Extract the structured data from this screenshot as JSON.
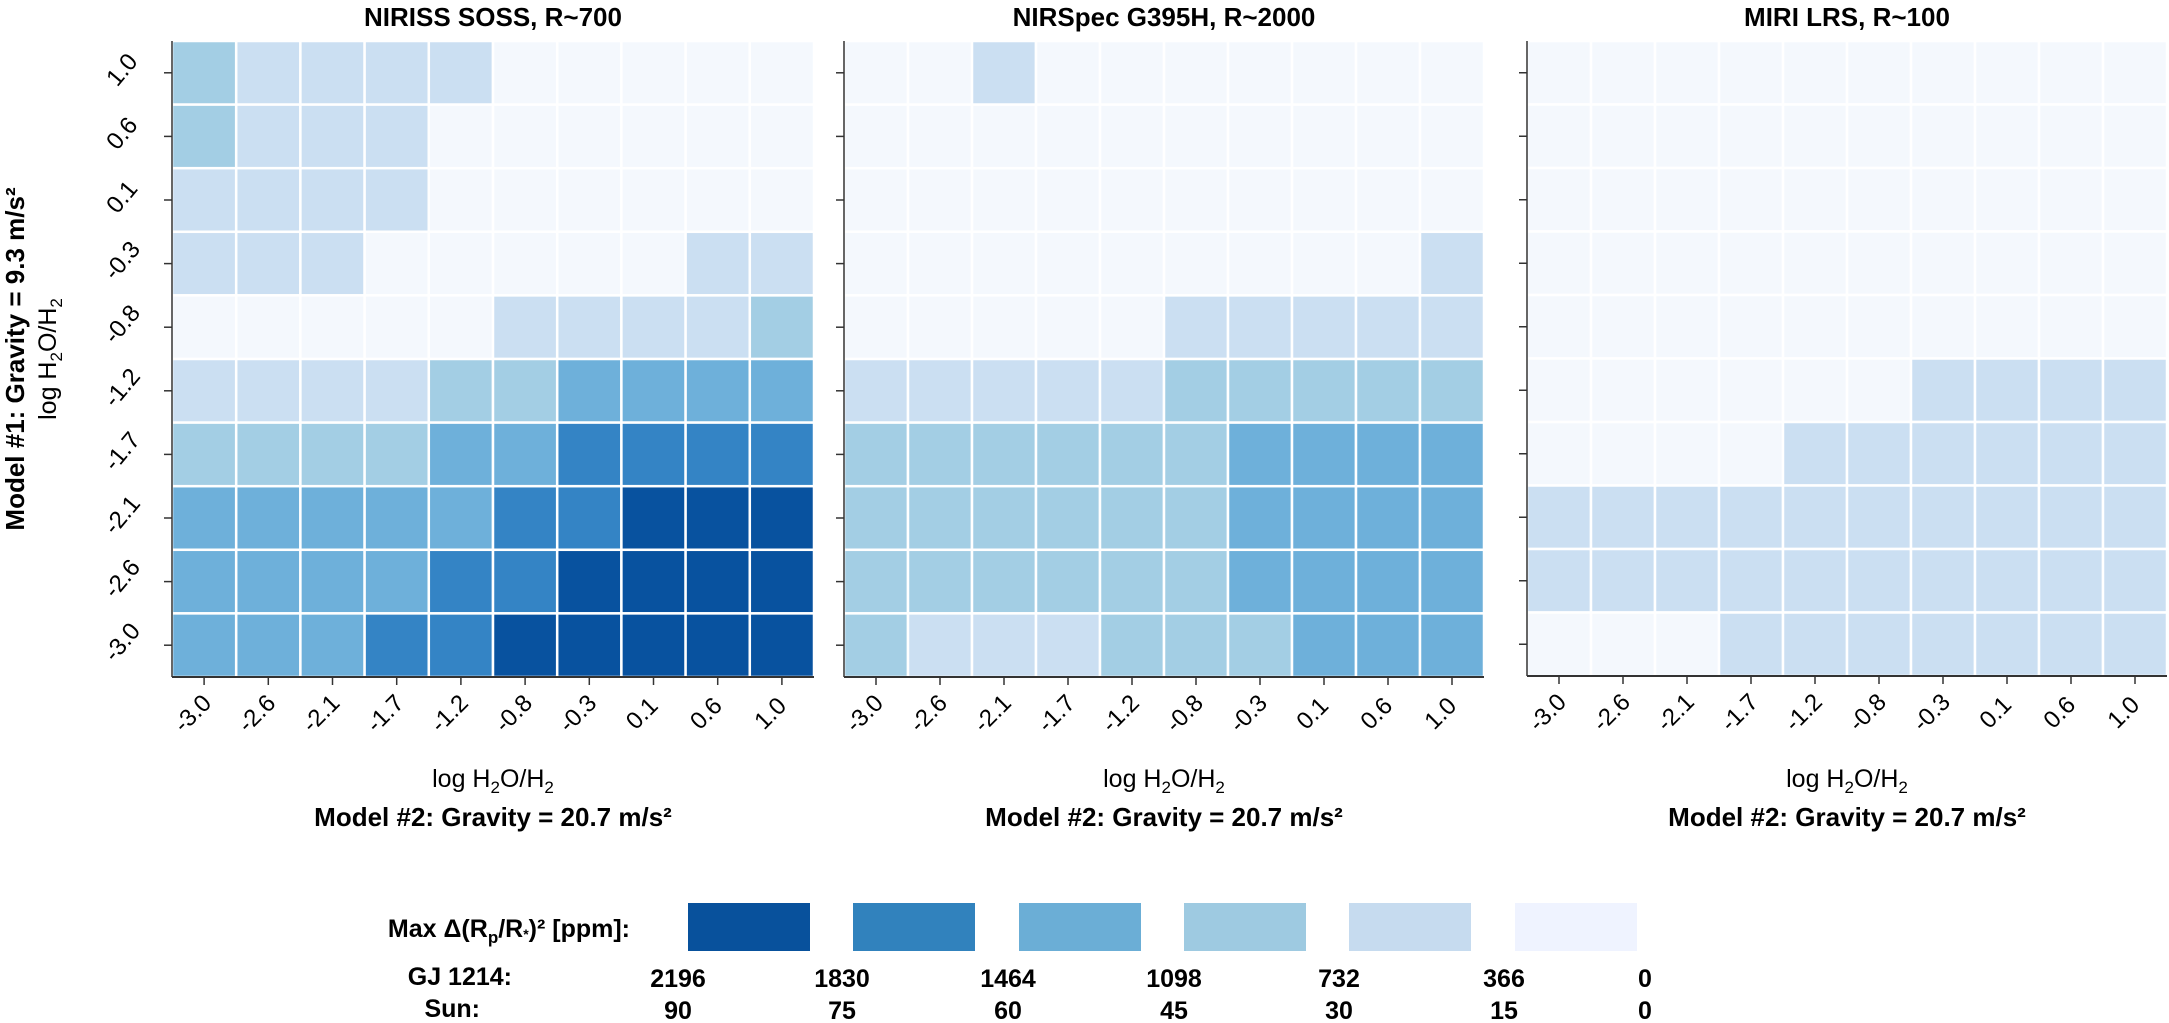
{
  "chart_data": [
    {
      "type": "heatmap",
      "title": "NIRISS SOSS, R~700",
      "xlabel": "log H2O/H2",
      "xlabel_parts": {
        "pre": "log H",
        "sub1": "2",
        "mid": "O/H",
        "sub2": "2"
      },
      "xsublabel": "Model #2: Gravity = 20.7 m/s²",
      "x_ticks": [
        "-3.0",
        "-2.6",
        "-2.1",
        "-1.7",
        "-1.2",
        "-0.8",
        "-0.3",
        "0.1",
        "0.6",
        "1.0"
      ],
      "y_ticks_top_to_bottom": [
        "1.0",
        "0.6",
        "0.1",
        "-0.3",
        "-0.8",
        "-1.2",
        "-1.7",
        "-2.1",
        "-2.6",
        "-3.0"
      ],
      "bin_index_note": "0=0-366, 1=366-732, 2=732-1098, 3=1098-1464, 4=1464-1830, 5=1830-2196 ppm (GJ 1214)",
      "bins": [
        [
          2,
          1,
          1,
          1,
          1,
          0,
          0,
          0,
          0,
          0
        ],
        [
          2,
          1,
          1,
          1,
          0,
          0,
          0,
          0,
          0,
          0
        ],
        [
          1,
          1,
          1,
          1,
          0,
          0,
          0,
          0,
          0,
          0
        ],
        [
          1,
          1,
          1,
          0,
          0,
          0,
          0,
          0,
          1,
          1
        ],
        [
          0,
          0,
          0,
          0,
          0,
          1,
          1,
          1,
          1,
          2
        ],
        [
          1,
          1,
          1,
          1,
          2,
          2,
          3,
          3,
          3,
          3
        ],
        [
          2,
          2,
          2,
          2,
          3,
          3,
          4,
          4,
          4,
          4
        ],
        [
          3,
          3,
          3,
          3,
          3,
          4,
          4,
          5,
          5,
          5
        ],
        [
          3,
          3,
          3,
          3,
          4,
          4,
          5,
          5,
          5,
          5
        ],
        [
          3,
          3,
          3,
          4,
          4,
          5,
          5,
          5,
          5,
          5
        ]
      ]
    },
    {
      "type": "heatmap",
      "title": "NIRSpec G395H, R~2000",
      "xlabel": "log H2O/H2",
      "xlabel_parts": {
        "pre": "log H",
        "sub1": "2",
        "mid": "O/H",
        "sub2": "2"
      },
      "xsublabel": "Model #2: Gravity = 20.7 m/s²",
      "x_ticks": [
        "-3.0",
        "-2.6",
        "-2.1",
        "-1.7",
        "-1.2",
        "-0.8",
        "-0.3",
        "0.1",
        "0.6",
        "1.0"
      ],
      "y_ticks_top_to_bottom": [
        "1.0",
        "0.6",
        "0.1",
        "-0.3",
        "-0.8",
        "-1.2",
        "-1.7",
        "-2.1",
        "-2.6",
        "-3.0"
      ],
      "bins": [
        [
          0,
          0,
          1,
          0,
          0,
          0,
          0,
          0,
          0,
          0
        ],
        [
          0,
          0,
          0,
          0,
          0,
          0,
          0,
          0,
          0,
          0
        ],
        [
          0,
          0,
          0,
          0,
          0,
          0,
          0,
          0,
          0,
          0
        ],
        [
          0,
          0,
          0,
          0,
          0,
          0,
          0,
          0,
          0,
          1
        ],
        [
          0,
          0,
          0,
          0,
          0,
          1,
          1,
          1,
          1,
          1
        ],
        [
          1,
          1,
          1,
          1,
          1,
          2,
          2,
          2,
          2,
          2
        ],
        [
          2,
          2,
          2,
          2,
          2,
          2,
          3,
          3,
          3,
          3
        ],
        [
          2,
          2,
          2,
          2,
          2,
          2,
          3,
          3,
          3,
          3
        ],
        [
          2,
          2,
          2,
          2,
          2,
          2,
          3,
          3,
          3,
          3
        ],
        [
          2,
          1,
          1,
          1,
          2,
          2,
          2,
          3,
          3,
          3
        ]
      ]
    },
    {
      "type": "heatmap",
      "title": "MIRI LRS, R~100",
      "xlabel": "log H2O/H2",
      "xlabel_parts": {
        "pre": "log H",
        "sub1": "2",
        "mid": "O/H",
        "sub2": "2"
      },
      "xsublabel": "Model #2: Gravity = 20.7 m/s²",
      "x_ticks": [
        "-3.0",
        "-2.6",
        "-2.1",
        "-1.7",
        "-1.2",
        "-0.8",
        "-0.3",
        "0.1",
        "0.6",
        "1.0"
      ],
      "y_ticks_top_to_bottom": [
        "1.0",
        "0.6",
        "0.1",
        "-0.3",
        "-0.8",
        "-1.2",
        "-1.7",
        "-2.1",
        "-2.6",
        "-3.0"
      ],
      "bins": [
        [
          0,
          0,
          0,
          0,
          0,
          0,
          0,
          0,
          0,
          0
        ],
        [
          0,
          0,
          0,
          0,
          0,
          0,
          0,
          0,
          0,
          0
        ],
        [
          0,
          0,
          0,
          0,
          0,
          0,
          0,
          0,
          0,
          0
        ],
        [
          0,
          0,
          0,
          0,
          0,
          0,
          0,
          0,
          0,
          0
        ],
        [
          0,
          0,
          0,
          0,
          0,
          0,
          0,
          0,
          0,
          0
        ],
        [
          0,
          0,
          0,
          0,
          0,
          0,
          1,
          1,
          1,
          1
        ],
        [
          0,
          0,
          0,
          0,
          1,
          1,
          1,
          1,
          1,
          1
        ],
        [
          1,
          1,
          1,
          1,
          1,
          1,
          1,
          1,
          1,
          1
        ],
        [
          1,
          1,
          1,
          1,
          1,
          1,
          1,
          1,
          1,
          1
        ],
        [
          0,
          0,
          0,
          1,
          1,
          1,
          1,
          1,
          1,
          1
        ]
      ]
    }
  ],
  "shared": {
    "ylabel_bold": "Model #1: Gravity = 9.3 m/s²",
    "ylabel_parts": {
      "pre": "log H",
      "sub1": "2",
      "mid": "O/H",
      "sub2": "2"
    }
  },
  "legend": {
    "title": "Max Δ(Rp/R*)² [ppm]:",
    "title_parts": {
      "pre": "Max Δ(R",
      "sub_p": "p",
      "mid": "/R",
      "sub_star": "*",
      "post": ")² [ppm]:"
    },
    "row1_label": "GJ 1214:",
    "row2_label": "Sun:",
    "colors_dark_to_light": [
      "#08519c",
      "#3182bd",
      "#6baed6",
      "#9ecae1",
      "#c6dbef",
      "#eff3ff"
    ],
    "gj1214_values": [
      "2196",
      "1830",
      "1464",
      "1098",
      "732",
      "366",
      "0"
    ],
    "sun_values": [
      "90",
      "75",
      "60",
      "45",
      "30",
      "15",
      "0"
    ]
  },
  "bin_colors": [
    "#f4f8fd",
    "#cbdff2",
    "#a3cee4",
    "#6eb0da",
    "#3484c5",
    "#08529f"
  ]
}
